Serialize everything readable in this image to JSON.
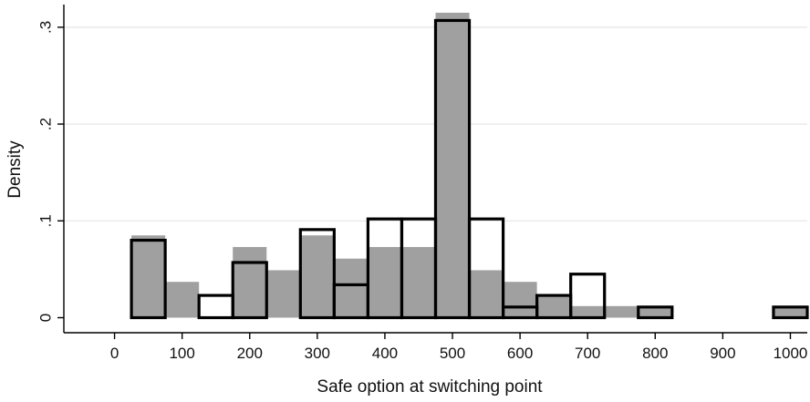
{
  "chart_data": {
    "type": "bar",
    "title": "",
    "xlabel": "Safe option at switching point",
    "ylabel": "Density",
    "xlim": [
      -75,
      1025
    ],
    "ylim": [
      0,
      0.3
    ],
    "x_ticks": [
      0,
      100,
      200,
      300,
      400,
      500,
      600,
      700,
      800,
      900,
      1000
    ],
    "x_tick_labels": [
      "0",
      "100",
      "200",
      "300",
      "400",
      "500",
      "600",
      "700",
      "800",
      "900",
      "1000"
    ],
    "y_ticks": [
      0,
      0.1,
      0.2,
      0.3
    ],
    "y_tick_labels": [
      "0",
      ".1",
      ".2",
      ".3"
    ],
    "bin_width": 50,
    "grid": true,
    "series": [
      {
        "style": "filled-gray",
        "color": "#a0a0a0",
        "bins": [
          {
            "x": 50,
            "density": 0.085
          },
          {
            "x": 100,
            "density": 0.037
          },
          {
            "x": 200,
            "density": 0.073
          },
          {
            "x": 250,
            "density": 0.049
          },
          {
            "x": 300,
            "density": 0.085
          },
          {
            "x": 350,
            "density": 0.061
          },
          {
            "x": 400,
            "density": 0.073
          },
          {
            "x": 450,
            "density": 0.073
          },
          {
            "x": 500,
            "density": 0.315
          },
          {
            "x": 550,
            "density": 0.049
          },
          {
            "x": 600,
            "density": 0.037
          },
          {
            "x": 650,
            "density": 0.024
          },
          {
            "x": 700,
            "density": 0.012
          },
          {
            "x": 750,
            "density": 0.012
          },
          {
            "x": 800,
            "density": 0.012
          },
          {
            "x": 1000,
            "density": 0.012
          }
        ]
      },
      {
        "style": "outline-black",
        "color": "#000000",
        "bins": [
          {
            "x": 50,
            "density": 0.08
          },
          {
            "x": 150,
            "density": 0.023
          },
          {
            "x": 200,
            "density": 0.057
          },
          {
            "x": 300,
            "density": 0.091
          },
          {
            "x": 350,
            "density": 0.034
          },
          {
            "x": 400,
            "density": 0.102
          },
          {
            "x": 450,
            "density": 0.102
          },
          {
            "x": 500,
            "density": 0.307
          },
          {
            "x": 550,
            "density": 0.102
          },
          {
            "x": 600,
            "density": 0.011
          },
          {
            "x": 650,
            "density": 0.023
          },
          {
            "x": 700,
            "density": 0.045
          },
          {
            "x": 800,
            "density": 0.011
          },
          {
            "x": 1000,
            "density": 0.011
          }
        ]
      }
    ]
  }
}
